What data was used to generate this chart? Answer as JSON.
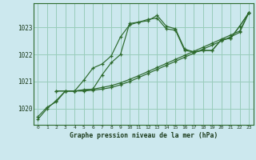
{
  "title": "Graphe pression niveau de la mer (hPa)",
  "bg_color": "#cce8ee",
  "grid_color": "#99ccbb",
  "line_color": "#2d6a2d",
  "xlim": [
    -0.5,
    23.5
  ],
  "ylim": [
    1019.4,
    1023.9
  ],
  "xticks": [
    0,
    1,
    2,
    3,
    4,
    5,
    6,
    7,
    8,
    9,
    10,
    11,
    12,
    13,
    14,
    15,
    16,
    17,
    18,
    19,
    20,
    21,
    22,
    23
  ],
  "yticks": [
    1020,
    1021,
    1022,
    1023
  ],
  "series1_x": [
    0,
    1,
    2,
    3,
    4,
    5,
    6,
    7,
    8,
    9,
    10,
    11,
    12,
    13,
    14,
    15,
    16,
    17,
    18,
    19,
    20,
    21,
    22,
    23
  ],
  "series1": [
    1019.6,
    1020.0,
    1020.3,
    1020.65,
    1020.65,
    1020.7,
    1020.72,
    1021.25,
    1021.7,
    1022.0,
    1023.15,
    1023.2,
    1023.25,
    1023.45,
    1023.05,
    1022.95,
    1022.2,
    1022.1,
    1022.15,
    1022.15,
    1022.55,
    1022.6,
    1023.05,
    1023.55
  ],
  "series2_x": [
    0,
    1,
    2,
    3,
    4,
    5,
    6,
    7,
    8,
    9,
    10,
    11,
    12,
    13,
    14,
    15,
    16,
    17,
    18,
    19,
    20,
    21,
    22,
    23
  ],
  "series2": [
    1019.7,
    1020.05,
    1020.25,
    1020.65,
    1020.65,
    1021.05,
    1021.5,
    1021.65,
    1021.95,
    1022.65,
    1023.1,
    1023.2,
    1023.3,
    1023.35,
    1022.95,
    1022.9,
    1022.15,
    1022.1,
    1022.15,
    1022.15,
    1022.55,
    1022.6,
    1023.05,
    1023.55
  ],
  "series3_x": [
    2,
    3,
    4,
    5,
    6,
    7,
    8,
    9,
    10,
    11,
    12,
    13,
    14,
    15,
    16,
    17,
    18,
    19,
    20,
    21,
    22,
    23
  ],
  "series3": [
    1020.65,
    1020.65,
    1020.65,
    1020.65,
    1020.68,
    1020.72,
    1020.78,
    1020.88,
    1021.0,
    1021.15,
    1021.3,
    1021.45,
    1021.6,
    1021.75,
    1021.9,
    1022.05,
    1022.2,
    1022.35,
    1022.5,
    1022.65,
    1022.82,
    1023.55
  ],
  "series4_x": [
    2,
    3,
    4,
    5,
    6,
    7,
    8,
    9,
    10,
    11,
    12,
    13,
    14,
    15,
    16,
    17,
    18,
    19,
    20,
    21,
    22,
    23
  ],
  "series4": [
    1020.65,
    1020.65,
    1020.65,
    1020.68,
    1020.72,
    1020.78,
    1020.85,
    1020.95,
    1021.08,
    1021.22,
    1021.37,
    1021.52,
    1021.67,
    1021.82,
    1021.97,
    1022.12,
    1022.27,
    1022.42,
    1022.57,
    1022.72,
    1022.87,
    1023.55
  ]
}
